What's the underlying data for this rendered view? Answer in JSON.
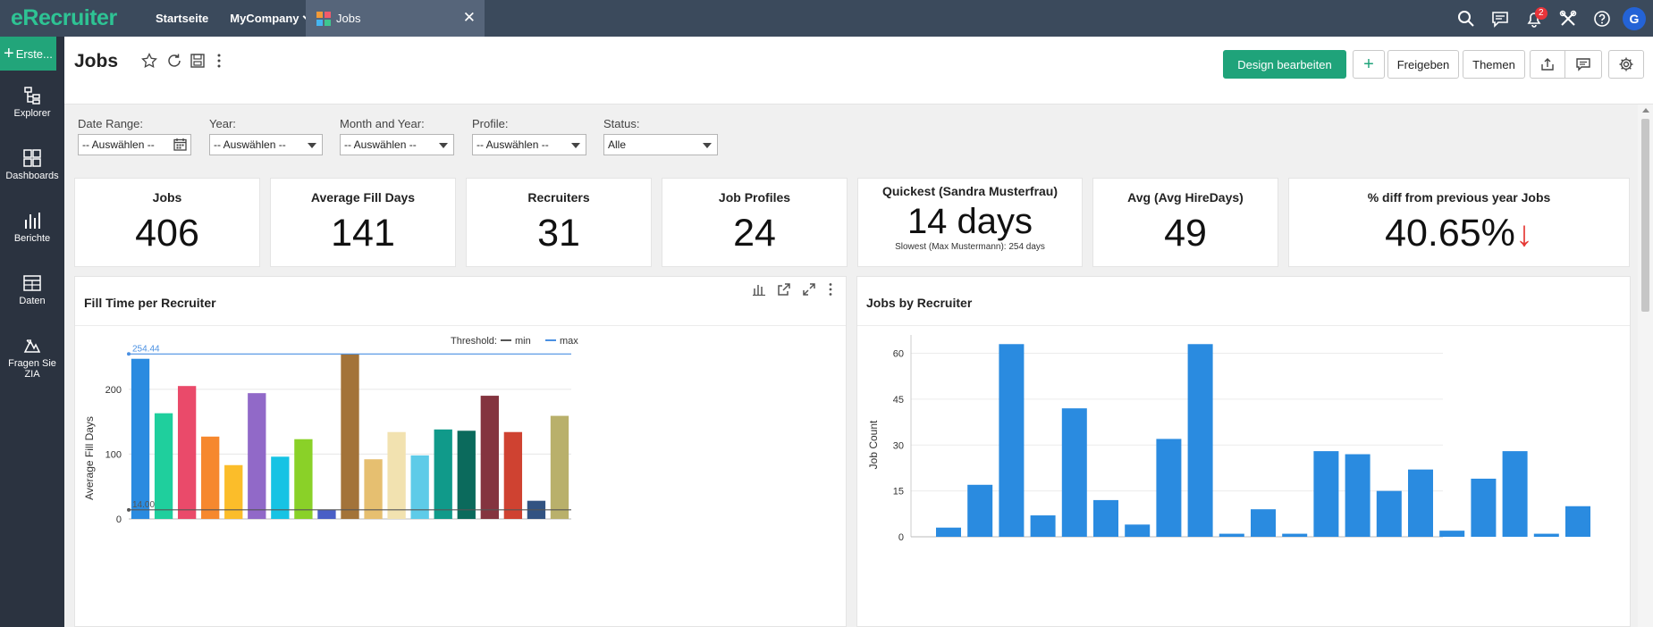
{
  "app": {
    "brand": "eRecruiter"
  },
  "topnav": {
    "home": "Startseite",
    "company": "MyCompany",
    "tab_label": "Jobs",
    "notification_count": "2",
    "avatar_initial": "G"
  },
  "sidebar": {
    "create_label": "Erste...",
    "items": [
      {
        "label": "Explorer",
        "icon": "explorer-icon"
      },
      {
        "label": "Dashboards",
        "icon": "dashboards-icon"
      },
      {
        "label": "Berichte",
        "icon": "reports-icon"
      },
      {
        "label": "Daten",
        "icon": "data-icon"
      },
      {
        "label": "Fragen Sie ZIA",
        "icon": "ask-zia-icon"
      }
    ]
  },
  "header": {
    "title": "Jobs",
    "design_label": "Design bearbeiten",
    "add_label": "+",
    "share_label": "Freigeben",
    "themes_label": "Themen"
  },
  "filters": [
    {
      "label": "Date Range:",
      "value": "-- Auswählen --"
    },
    {
      "label": "Year:",
      "value": "-- Auswählen --"
    },
    {
      "label": "Month and Year:",
      "value": "-- Auswählen --"
    },
    {
      "label": "Profile:",
      "value": "-- Auswählen --"
    },
    {
      "label": "Status:",
      "value": "Alle"
    }
  ],
  "kpis": [
    {
      "title": "Jobs",
      "value": "406"
    },
    {
      "title": "Average Fill Days",
      "value": "141"
    },
    {
      "title": "Recruiters",
      "value": "31"
    },
    {
      "title": "Job Profiles",
      "value": "24"
    },
    {
      "title": "Quickest (Sandra Musterfrau)",
      "value": "14 days",
      "sub": "Slowest (Max Mustermann): 254 days"
    },
    {
      "title": "Avg (Avg HireDays)",
      "value": "49"
    },
    {
      "title": "% diff from previous year Jobs",
      "value": "40.65%",
      "trend": "↓"
    }
  ],
  "colors": {
    "accent": "#1fa37a",
    "topbar": "#3b4a5c",
    "sidebar": "#2b3340",
    "bar_blue": "#2a8be0",
    "threshold_min": "#555555",
    "threshold_max": "#4a90e2",
    "trend_down": "#e53935"
  },
  "chart_data": [
    {
      "type": "bar",
      "title": "Fill Time per Recruiter",
      "ylabel": "Average Fill Days",
      "xlabel": "",
      "ylim": [
        0,
        270
      ],
      "yticks": [
        0,
        100,
        200
      ],
      "grid": true,
      "threshold_legend_title": "Threshold:",
      "thresholds": [
        {
          "name": "min",
          "value": 14.0,
          "label": "14.00",
          "color": "#555555"
        },
        {
          "name": "max",
          "value": 254.44,
          "label": "254.44",
          "color": "#4a90e2"
        }
      ],
      "values": [
        247,
        163,
        205,
        127,
        83,
        194,
        96,
        123,
        14,
        254,
        92,
        134,
        98,
        138,
        136,
        190,
        134,
        28,
        159
      ],
      "colors": [
        "#2a8be0",
        "#1fcf9d",
        "#ea4a6a",
        "#f6882e",
        "#fbbd2a",
        "#9169c8",
        "#16c3e4",
        "#8ad128",
        "#4a5fc6",
        "#a37339",
        "#e6bf70",
        "#f2e2b0",
        "#5ecbe8",
        "#109a8a",
        "#0b6a5c",
        "#84343f",
        "#cf4231",
        "#325382",
        "#b9b06b"
      ]
    },
    {
      "type": "bar",
      "title": "Jobs by Recruiter",
      "ylabel": "Job Count",
      "xlabel": "",
      "ylim": [
        0,
        66
      ],
      "yticks": [
        0,
        15,
        30,
        45,
        60
      ],
      "grid": true,
      "values": [
        3,
        17,
        63,
        7,
        42,
        12,
        4,
        32,
        63,
        1,
        9,
        1,
        28,
        27,
        15,
        22,
        2,
        19,
        28,
        1,
        10
      ],
      "color": "#2a8be0"
    }
  ]
}
